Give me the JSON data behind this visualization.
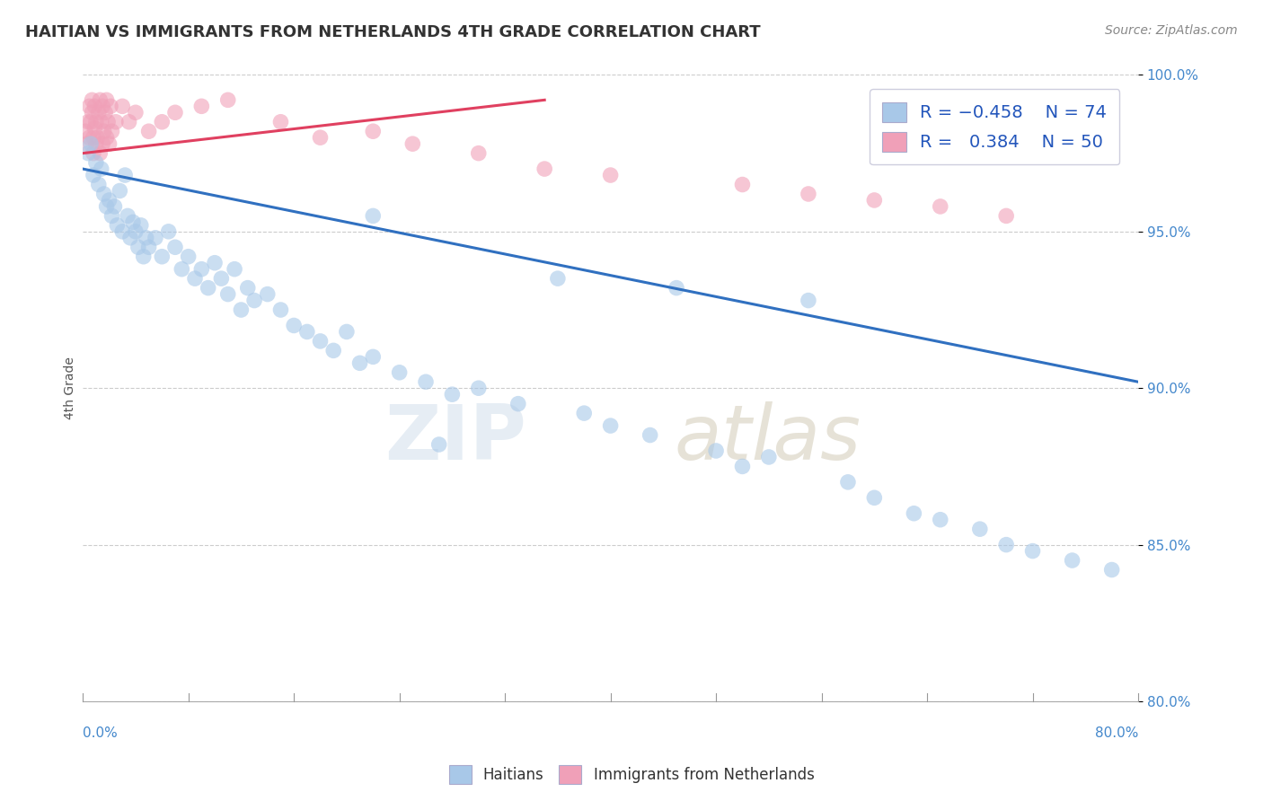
{
  "title": "HAITIAN VS IMMIGRANTS FROM NETHERLANDS 4TH GRADE CORRELATION CHART",
  "source": "Source: ZipAtlas.com",
  "ylabel": "4th Grade",
  "xmin": 0.0,
  "xmax": 80.0,
  "ymin": 80.0,
  "ymax": 100.0,
  "yticks": [
    80.0,
    85.0,
    90.0,
    95.0,
    100.0
  ],
  "ytick_labels": [
    "80.0%",
    "85.0%",
    "90.0%",
    "95.0%",
    "100.0%"
  ],
  "blue_color": "#a8c8e8",
  "pink_color": "#f0a0b8",
  "blue_line_color": "#3070c0",
  "pink_line_color": "#e04060",
  "title_color": "#333333",
  "axis_label_color": "#4488cc",
  "blue_scatter_x": [
    0.4,
    0.6,
    0.8,
    1.0,
    1.2,
    1.4,
    1.6,
    1.8,
    2.0,
    2.2,
    2.4,
    2.6,
    2.8,
    3.0,
    3.2,
    3.4,
    3.6,
    3.8,
    4.0,
    4.2,
    4.4,
    4.6,
    4.8,
    5.0,
    5.5,
    6.0,
    6.5,
    7.0,
    7.5,
    8.0,
    8.5,
    9.0,
    9.5,
    10.0,
    10.5,
    11.0,
    11.5,
    12.0,
    12.5,
    13.0,
    14.0,
    15.0,
    16.0,
    17.0,
    18.0,
    19.0,
    20.0,
    21.0,
    22.0,
    24.0,
    26.0,
    28.0,
    30.0,
    33.0,
    36.0,
    38.0,
    40.0,
    43.0,
    45.0,
    48.0,
    50.0,
    52.0,
    55.0,
    58.0,
    60.0,
    63.0,
    65.0,
    68.0,
    70.0,
    72.0,
    75.0,
    78.0,
    22.0,
    27.0
  ],
  "blue_scatter_y": [
    97.5,
    97.8,
    96.8,
    97.2,
    96.5,
    97.0,
    96.2,
    95.8,
    96.0,
    95.5,
    95.8,
    95.2,
    96.3,
    95.0,
    96.8,
    95.5,
    94.8,
    95.3,
    95.0,
    94.5,
    95.2,
    94.2,
    94.8,
    94.5,
    94.8,
    94.2,
    95.0,
    94.5,
    93.8,
    94.2,
    93.5,
    93.8,
    93.2,
    94.0,
    93.5,
    93.0,
    93.8,
    92.5,
    93.2,
    92.8,
    93.0,
    92.5,
    92.0,
    91.8,
    91.5,
    91.2,
    91.8,
    90.8,
    91.0,
    90.5,
    90.2,
    89.8,
    90.0,
    89.5,
    93.5,
    89.2,
    88.8,
    88.5,
    93.2,
    88.0,
    87.5,
    87.8,
    92.8,
    87.0,
    86.5,
    86.0,
    85.8,
    85.5,
    85.0,
    84.8,
    84.5,
    84.2,
    95.5,
    88.2
  ],
  "pink_scatter_x": [
    0.2,
    0.3,
    0.4,
    0.5,
    0.5,
    0.6,
    0.7,
    0.7,
    0.8,
    0.8,
    0.9,
    0.9,
    1.0,
    1.0,
    1.1,
    1.2,
    1.3,
    1.3,
    1.4,
    1.5,
    1.5,
    1.6,
    1.7,
    1.8,
    1.8,
    1.9,
    2.0,
    2.1,
    2.2,
    2.5,
    3.0,
    3.5,
    4.0,
    5.0,
    6.0,
    7.0,
    9.0,
    11.0,
    15.0,
    18.0,
    22.0,
    25.0,
    30.0,
    35.0,
    40.0,
    50.0,
    55.0,
    60.0,
    65.0,
    70.0
  ],
  "pink_scatter_y": [
    98.2,
    97.8,
    98.5,
    98.0,
    99.0,
    98.5,
    98.8,
    99.2,
    97.5,
    98.0,
    98.3,
    99.0,
    97.8,
    98.5,
    98.0,
    98.8,
    99.2,
    97.5,
    98.5,
    97.8,
    99.0,
    98.2,
    98.8,
    98.0,
    99.2,
    98.5,
    97.8,
    99.0,
    98.2,
    98.5,
    99.0,
    98.5,
    98.8,
    98.2,
    98.5,
    98.8,
    99.0,
    99.2,
    98.5,
    98.0,
    98.2,
    97.8,
    97.5,
    97.0,
    96.8,
    96.5,
    96.2,
    96.0,
    95.8,
    95.5
  ],
  "blue_line_x0": 0.0,
  "blue_line_y0": 97.0,
  "blue_line_x1": 80.0,
  "blue_line_y1": 90.2,
  "pink_line_x0": 0.0,
  "pink_line_y0": 97.5,
  "pink_line_x1": 35.0,
  "pink_line_y1": 99.2
}
